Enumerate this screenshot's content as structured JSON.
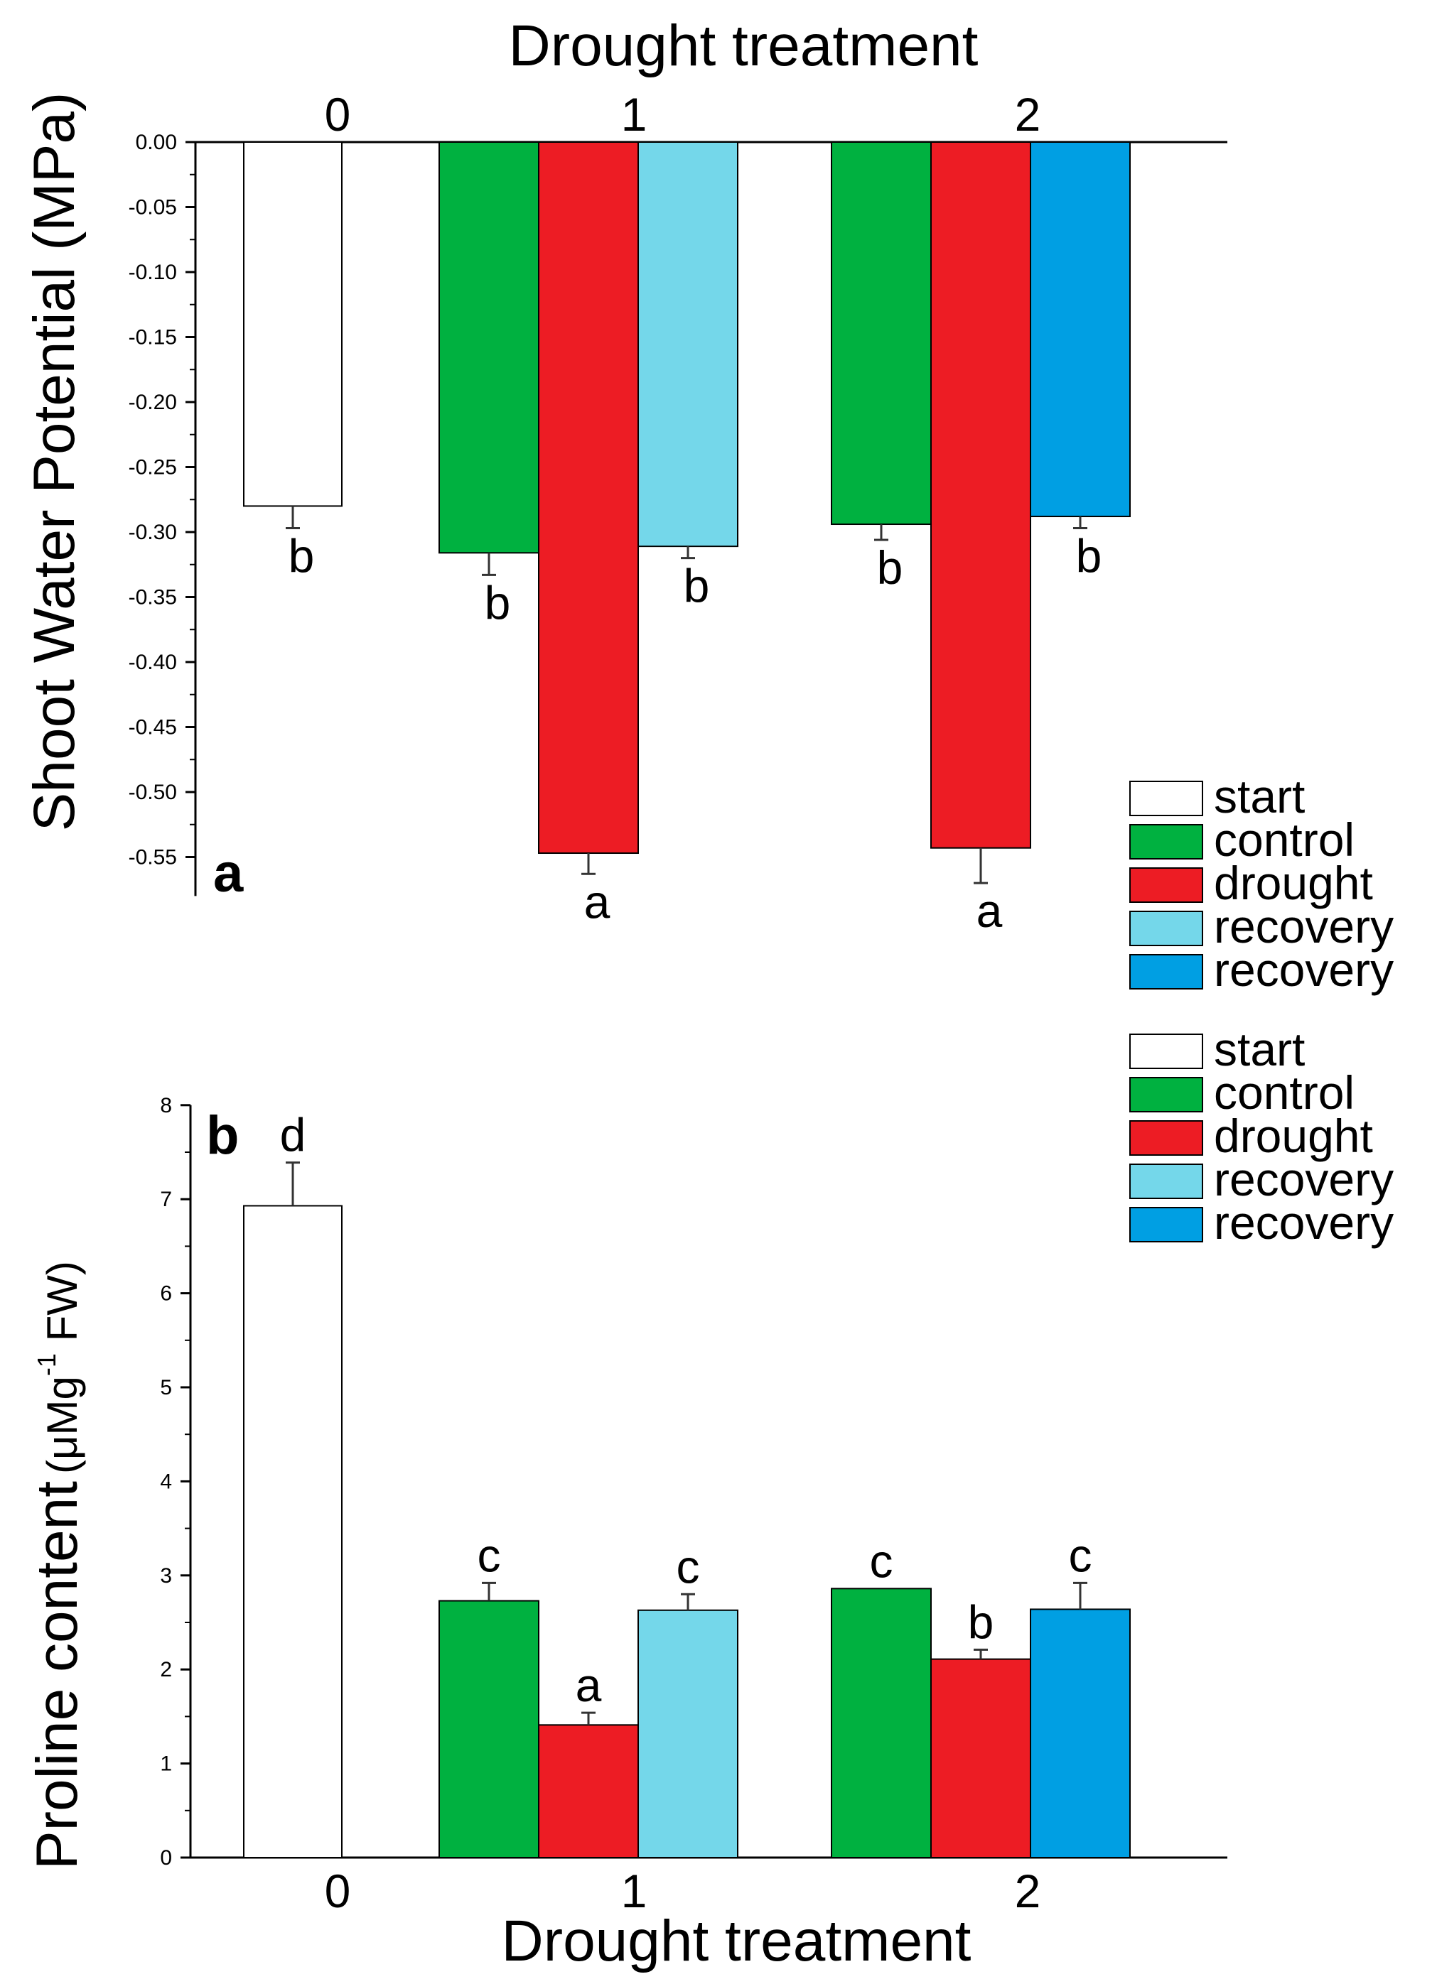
{
  "chart_data": [
    {
      "id": "a",
      "type": "bar",
      "panel_label": "a",
      "xlabel": "Drought treatment",
      "ylabel": "Shoot Water Potential (MPa)",
      "x_axis_position": "top",
      "categories": [
        "0",
        "1",
        "2"
      ],
      "ylim": [
        -0.58,
        0.0
      ],
      "yticks": [
        "0.00",
        "-0.05",
        "-0.10",
        "-0.15",
        "-0.20",
        "-0.25",
        "-0.30",
        "-0.35",
        "-0.40",
        "-0.45",
        "-0.50",
        "-0.55"
      ],
      "bars": [
        {
          "group": "0",
          "series": "start",
          "color": "#ffffff",
          "value": -0.28,
          "error": 0.017,
          "letter": "b"
        },
        {
          "group": "1",
          "series": "control",
          "color": "#00b140",
          "value": -0.316,
          "error": 0.017,
          "letter": "b"
        },
        {
          "group": "1",
          "series": "drought",
          "color": "#ed1c24",
          "value": -0.547,
          "error": 0.016,
          "letter": "a"
        },
        {
          "group": "1",
          "series": "recovery",
          "color": "#74d7ea",
          "value": -0.311,
          "error": 0.009,
          "letter": "b"
        },
        {
          "group": "2",
          "series": "control",
          "color": "#00b140",
          "value": -0.294,
          "error": 0.012,
          "letter": "b"
        },
        {
          "group": "2",
          "series": "drought",
          "color": "#ed1c24",
          "value": -0.543,
          "error": 0.027,
          "letter": "a"
        },
        {
          "group": "2",
          "series": "recovery",
          "color": "#009fe3",
          "value": -0.288,
          "error": 0.009,
          "letter": "b"
        }
      ],
      "legend": {
        "position": "bottom-right",
        "entries": [
          {
            "label": "start",
            "color": "#ffffff"
          },
          {
            "label": "control",
            "color": "#00b140"
          },
          {
            "label": "drought",
            "color": "#ed1c24"
          },
          {
            "label": "recovery",
            "color": "#74d7ea"
          },
          {
            "label": "recovery",
            "color": "#009fe3"
          }
        ]
      }
    },
    {
      "id": "b",
      "type": "bar",
      "panel_label": "b",
      "xlabel": "Drought treatment",
      "ylabel": "Proline content",
      "ylabel_unit_prefix": "(μMg",
      "ylabel_unit_sup": "-1",
      "ylabel_unit_suffix": " FW)",
      "x_axis_position": "bottom",
      "categories": [
        "0",
        "1",
        "2"
      ],
      "ylim": [
        0,
        8
      ],
      "yticks": [
        "0",
        "1",
        "2",
        "3",
        "4",
        "5",
        "6",
        "7",
        "8"
      ],
      "bars": [
        {
          "group": "0",
          "series": "start",
          "color": "#ffffff",
          "value": 6.93,
          "error": 0.46,
          "letter": "d"
        },
        {
          "group": "1",
          "series": "control",
          "color": "#00b140",
          "value": 2.73,
          "error": 0.19,
          "letter": "c"
        },
        {
          "group": "1",
          "series": "drought",
          "color": "#ed1c24",
          "value": 1.41,
          "error": 0.13,
          "letter": "a"
        },
        {
          "group": "1",
          "series": "recovery",
          "color": "#74d7ea",
          "value": 2.63,
          "error": 0.17,
          "letter": "c"
        },
        {
          "group": "2",
          "series": "control",
          "color": "#00b140",
          "value": 2.86,
          "error": 0.0,
          "letter": "c"
        },
        {
          "group": "2",
          "series": "drought",
          "color": "#ed1c24",
          "value": 2.11,
          "error": 0.1,
          "letter": "b"
        },
        {
          "group": "2",
          "series": "recovery",
          "color": "#009fe3",
          "value": 2.64,
          "error": 0.28,
          "letter": "c"
        }
      ],
      "legend": {
        "position": "top-right",
        "entries": [
          {
            "label": "start",
            "color": "#ffffff"
          },
          {
            "label": "control",
            "color": "#00b140"
          },
          {
            "label": "drought",
            "color": "#ed1c24"
          },
          {
            "label": "recovery",
            "color": "#74d7ea"
          },
          {
            "label": "recovery",
            "color": "#009fe3"
          }
        ]
      }
    }
  ]
}
